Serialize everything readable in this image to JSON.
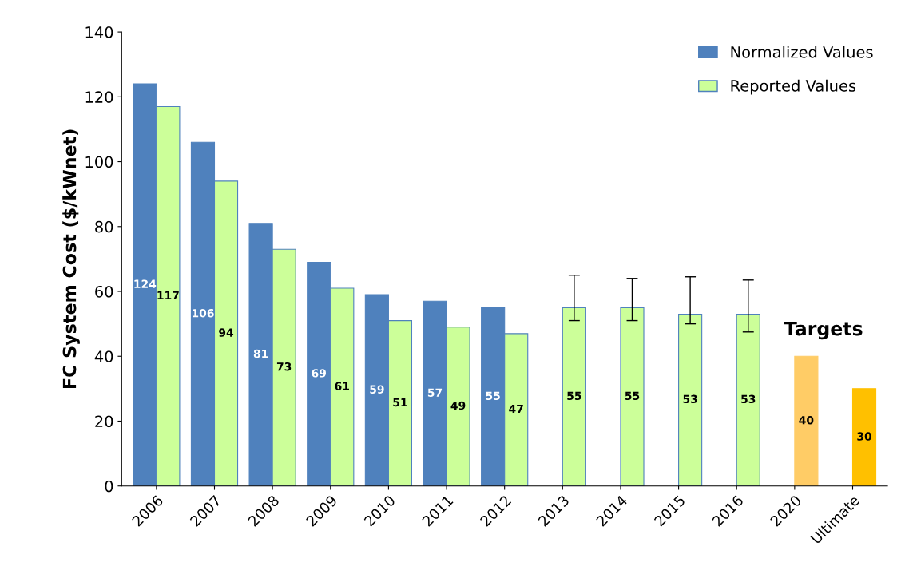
{
  "chart_data": {
    "type": "bar",
    "ylabel": "FC System Cost ($/kWnet)",
    "categories": [
      "2006",
      "2007",
      "2008",
      "2009",
      "2010",
      "2011",
      "2012",
      "2013",
      "2014",
      "2015",
      "2016",
      "2020",
      "Ultimate"
    ],
    "series": [
      {
        "name": "Normalized Values",
        "color": "#4f81bd",
        "values": [
          124,
          106,
          81,
          69,
          59,
          57,
          55,
          null,
          null,
          null,
          null,
          null,
          null
        ]
      },
      {
        "name": "Reported Values",
        "color": "#ccff99",
        "values": [
          117,
          94,
          73,
          61,
          51,
          49,
          47,
          55,
          55,
          53,
          53,
          null,
          null
        ],
        "errors": [
          null,
          null,
          null,
          null,
          null,
          null,
          null,
          [
            51,
            65
          ],
          [
            51,
            64
          ],
          [
            50,
            64.5
          ],
          [
            47.5,
            63.5
          ],
          null,
          null
        ]
      },
      {
        "colors": [
          null,
          null,
          null,
          null,
          null,
          null,
          null,
          null,
          null,
          null,
          null,
          "#ffcc66",
          "#ffc000"
        ],
        "values": [
          null,
          null,
          null,
          null,
          null,
          null,
          null,
          null,
          null,
          null,
          null,
          40,
          30
        ]
      }
    ],
    "ylim": [
      0,
      140
    ],
    "yticks": [
      0,
      20,
      40,
      60,
      80,
      100,
      120,
      140
    ],
    "data_labels": true,
    "legend": "top right",
    "grid": false,
    "annotations": [
      "Targets"
    ]
  }
}
